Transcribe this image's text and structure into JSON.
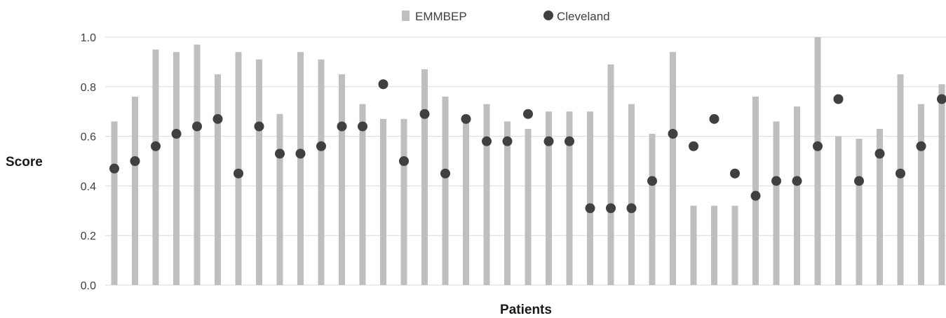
{
  "chart_data": {
    "type": "bar",
    "title": "",
    "xlabel": "Patients",
    "ylabel": "Score",
    "ylim": [
      0,
      1
    ],
    "yticks": [
      "0.0",
      "0.2",
      "0.4",
      "0.6",
      "0.8",
      "1.0"
    ],
    "grid": true,
    "legend_position": "top-center",
    "series": [
      {
        "name": "EMMBEP",
        "mark": "bar",
        "color": "#bfbfbf",
        "values": [
          0.66,
          0.76,
          0.95,
          0.94,
          0.97,
          0.85,
          0.94,
          0.91,
          0.69,
          0.94,
          0.91,
          0.85,
          0.73,
          0.67,
          0.67,
          0.87,
          0.76,
          0.67,
          0.73,
          0.66,
          0.63,
          0.7,
          0.7,
          0.7,
          0.89,
          0.73,
          0.61,
          0.94,
          0.32,
          0.32,
          0.32,
          0.76,
          0.66,
          0.72,
          1.0,
          0.6,
          0.59,
          0.63,
          0.85,
          0.73,
          0.81
        ]
      },
      {
        "name": "Cleveland",
        "mark": "point",
        "color": "#404040",
        "values": [
          0.47,
          0.5,
          0.56,
          0.61,
          0.64,
          0.67,
          0.45,
          0.64,
          0.53,
          0.53,
          0.56,
          0.64,
          0.64,
          0.81,
          0.5,
          0.69,
          0.45,
          0.67,
          0.58,
          0.58,
          0.69,
          0.58,
          0.58,
          0.31,
          0.31,
          0.31,
          0.42,
          0.61,
          0.56,
          0.67,
          0.45,
          0.36,
          0.42,
          0.42,
          0.56,
          0.75,
          0.42,
          0.53,
          0.45,
          0.56,
          0.75
        ]
      }
    ]
  }
}
